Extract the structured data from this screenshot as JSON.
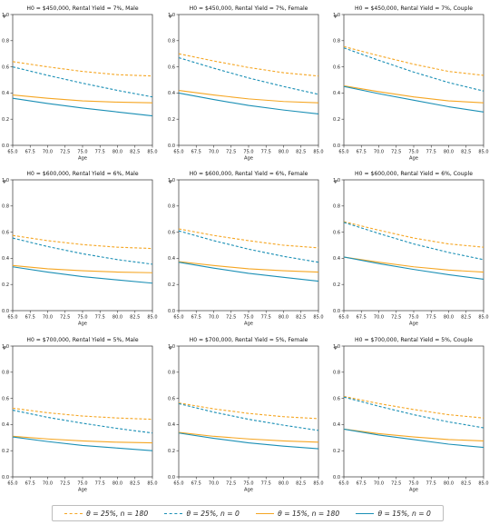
{
  "colors": {
    "orange": "#F5A623",
    "blue": "#1A8FB5",
    "axis": "#333333"
  },
  "legend": {
    "placement": "bottom",
    "items": [
      {
        "label": "θ = 25%, n = 180",
        "color": "#F5A623",
        "style": "dashed"
      },
      {
        "label": "θ = 25%, n = 0",
        "color": "#1A8FB5",
        "style": "dashed"
      },
      {
        "label": "θ = 15%, n = 180",
        "color": "#F5A623",
        "style": "solid"
      },
      {
        "label": "θ = 15%, n = 0",
        "color": "#1A8FB5",
        "style": "solid"
      }
    ]
  },
  "chart_data": [
    {
      "type": "line",
      "title": "H0 = $450,000, Rental Yield = 7%, Male",
      "xlabel": "Age",
      "ylabel": "φ",
      "xlim": [
        65,
        85
      ],
      "ylim": [
        0,
        1.0
      ],
      "grid": false,
      "x_ticks": [
        "65.0",
        "67.5",
        "70.0",
        "72.5",
        "75.0",
        "77.5",
        "80.0",
        "82.5",
        "85.0"
      ],
      "y_ticks": [
        "0.0",
        "0.2",
        "0.4",
        "0.6",
        "0.8",
        "1.0"
      ],
      "x": [
        65,
        70,
        75,
        80,
        85
      ],
      "series": [
        {
          "name": "θ = 25%, n = 180",
          "values": [
            0.64,
            0.6,
            0.565,
            0.54,
            0.53
          ]
        },
        {
          "name": "θ = 25%, n = 0",
          "values": [
            0.6,
            0.535,
            0.475,
            0.42,
            0.37
          ]
        },
        {
          "name": "θ = 15%, n = 180",
          "values": [
            0.385,
            0.36,
            0.34,
            0.33,
            0.325
          ]
        },
        {
          "name": "θ = 15%, n = 0",
          "values": [
            0.36,
            0.32,
            0.285,
            0.255,
            0.225
          ]
        }
      ]
    },
    {
      "type": "line",
      "title": "H0 = $450,000, Rental Yield = 7%, Female",
      "xlabel": "Age",
      "ylabel": "φ",
      "xlim": [
        65,
        85
      ],
      "ylim": [
        0,
        1.0
      ],
      "grid": false,
      "x_ticks": [
        "65.0",
        "67.5",
        "70.0",
        "72.5",
        "75.0",
        "77.5",
        "80.0",
        "82.5",
        "85.0"
      ],
      "y_ticks": [
        "0.0",
        "0.2",
        "0.4",
        "0.6",
        "0.8",
        "1.0"
      ],
      "x": [
        65,
        70,
        75,
        80,
        85
      ],
      "series": [
        {
          "name": "θ = 25%, n = 180",
          "values": [
            0.7,
            0.645,
            0.595,
            0.555,
            0.53
          ]
        },
        {
          "name": "θ = 25%, n = 0",
          "values": [
            0.67,
            0.59,
            0.515,
            0.45,
            0.39
          ]
        },
        {
          "name": "θ = 15%, n = 180",
          "values": [
            0.42,
            0.385,
            0.355,
            0.335,
            0.325
          ]
        },
        {
          "name": "θ = 15%, n = 0",
          "values": [
            0.4,
            0.35,
            0.305,
            0.27,
            0.24
          ]
        }
      ]
    },
    {
      "type": "line",
      "title": "H0 = $450,000, Rental Yield = 7%, Couple",
      "xlabel": "Age",
      "ylabel": "φ",
      "xlim": [
        65,
        85
      ],
      "ylim": [
        0,
        1.0
      ],
      "grid": false,
      "x_ticks": [
        "65.0",
        "67.5",
        "70.0",
        "72.5",
        "75.0",
        "77.5",
        "80.0",
        "82.5",
        "85.0"
      ],
      "y_ticks": [
        "0.0",
        "0.2",
        "0.4",
        "0.6",
        "0.8",
        "1.0"
      ],
      "x": [
        65,
        70,
        75,
        80,
        85
      ],
      "series": [
        {
          "name": "θ = 25%, n = 180",
          "values": [
            0.755,
            0.685,
            0.62,
            0.565,
            0.535
          ]
        },
        {
          "name": "θ = 25%, n = 0",
          "values": [
            0.745,
            0.65,
            0.56,
            0.48,
            0.415
          ]
        },
        {
          "name": "θ = 15%, n = 180",
          "values": [
            0.455,
            0.41,
            0.37,
            0.34,
            0.325
          ]
        },
        {
          "name": "θ = 15%, n = 0",
          "values": [
            0.45,
            0.395,
            0.345,
            0.295,
            0.255
          ]
        }
      ]
    },
    {
      "type": "line",
      "title": "H0 = $600,000, Rental Yield = 6%, Male",
      "xlabel": "Age",
      "ylabel": "φ",
      "xlim": [
        65,
        85
      ],
      "ylim": [
        0,
        1.0
      ],
      "grid": false,
      "x_ticks": [
        "65.0",
        "67.5",
        "70.0",
        "72.5",
        "75.0",
        "77.5",
        "80.0",
        "82.5",
        "85.0"
      ],
      "y_ticks": [
        "0.0",
        "0.2",
        "0.4",
        "0.6",
        "0.8",
        "1.0"
      ],
      "x": [
        65,
        70,
        75,
        80,
        85
      ],
      "series": [
        {
          "name": "θ = 25%, n = 180",
          "values": [
            0.575,
            0.535,
            0.505,
            0.485,
            0.475
          ]
        },
        {
          "name": "θ = 25%, n = 0",
          "values": [
            0.555,
            0.49,
            0.435,
            0.39,
            0.355
          ]
        },
        {
          "name": "θ = 15%, n = 180",
          "values": [
            0.345,
            0.32,
            0.305,
            0.295,
            0.29
          ]
        },
        {
          "name": "θ = 15%, n = 0",
          "values": [
            0.335,
            0.295,
            0.26,
            0.235,
            0.21
          ]
        }
      ]
    },
    {
      "type": "line",
      "title": "H0 = $600,000, Rental Yield = 6%, Female",
      "xlabel": "Age",
      "ylabel": "φ",
      "xlim": [
        65,
        85
      ],
      "ylim": [
        0,
        1.0
      ],
      "grid": false,
      "x_ticks": [
        "65.0",
        "67.5",
        "70.0",
        "72.5",
        "75.0",
        "77.5",
        "80.0",
        "82.5",
        "85.0"
      ],
      "y_ticks": [
        "0.0",
        "0.2",
        "0.4",
        "0.6",
        "0.8",
        "1.0"
      ],
      "x": [
        65,
        70,
        75,
        80,
        85
      ],
      "series": [
        {
          "name": "θ = 25%, n = 180",
          "values": [
            0.625,
            0.575,
            0.535,
            0.5,
            0.48
          ]
        },
        {
          "name": "θ = 25%, n = 0",
          "values": [
            0.61,
            0.535,
            0.47,
            0.415,
            0.37
          ]
        },
        {
          "name": "θ = 15%, n = 180",
          "values": [
            0.375,
            0.345,
            0.32,
            0.305,
            0.295
          ]
        },
        {
          "name": "θ = 15%, n = 0",
          "values": [
            0.37,
            0.325,
            0.285,
            0.255,
            0.225
          ]
        }
      ]
    },
    {
      "type": "line",
      "title": "H0 = $600,000, Rental Yield = 6%, Couple",
      "xlabel": "Age",
      "ylabel": "φ",
      "xlim": [
        65,
        85
      ],
      "ylim": [
        0,
        1.0
      ],
      "grid": false,
      "x_ticks": [
        "65.0",
        "67.5",
        "70.0",
        "72.5",
        "75.0",
        "77.5",
        "80.0",
        "82.5",
        "85.0"
      ],
      "y_ticks": [
        "0.0",
        "0.2",
        "0.4",
        "0.6",
        "0.8",
        "1.0"
      ],
      "x": [
        65,
        70,
        75,
        80,
        85
      ],
      "series": [
        {
          "name": "θ = 25%, n = 180",
          "values": [
            0.68,
            0.615,
            0.555,
            0.51,
            0.485
          ]
        },
        {
          "name": "θ = 25%, n = 0",
          "values": [
            0.675,
            0.59,
            0.51,
            0.445,
            0.39
          ]
        },
        {
          "name": "θ = 15%, n = 180",
          "values": [
            0.41,
            0.37,
            0.335,
            0.31,
            0.295
          ]
        },
        {
          "name": "θ = 15%, n = 0",
          "values": [
            0.41,
            0.36,
            0.315,
            0.275,
            0.24
          ]
        }
      ]
    },
    {
      "type": "line",
      "title": "H0 = $700,000, Rental Yield = 5%, Male",
      "xlabel": "Age",
      "ylabel": "φ",
      "xlim": [
        65,
        85
      ],
      "ylim": [
        0,
        1.0
      ],
      "grid": false,
      "x_ticks": [
        "65.0",
        "67.5",
        "70.0",
        "72.5",
        "75.0",
        "77.5",
        "80.0",
        "82.5",
        "85.0"
      ],
      "y_ticks": [
        "0.0",
        "0.2",
        "0.4",
        "0.6",
        "0.8",
        "1.0"
      ],
      "x": [
        65,
        70,
        75,
        80,
        85
      ],
      "series": [
        {
          "name": "θ = 25%, n = 180",
          "values": [
            0.525,
            0.49,
            0.465,
            0.45,
            0.44
          ]
        },
        {
          "name": "θ = 25%, n = 0",
          "values": [
            0.51,
            0.455,
            0.41,
            0.37,
            0.335
          ]
        },
        {
          "name": "θ = 15%, n = 180",
          "values": [
            0.31,
            0.29,
            0.275,
            0.265,
            0.26
          ]
        },
        {
          "name": "θ = 15%, n = 0",
          "values": [
            0.305,
            0.27,
            0.24,
            0.22,
            0.2
          ]
        }
      ]
    },
    {
      "type": "line",
      "title": "H0 = $700,000, Rental Yield = 5%, Female",
      "xlabel": "Age",
      "ylabel": "φ",
      "xlim": [
        65,
        85
      ],
      "ylim": [
        0,
        1.0
      ],
      "grid": false,
      "x_ticks": [
        "65.0",
        "67.5",
        "70.0",
        "72.5",
        "75.0",
        "77.5",
        "80.0",
        "82.5",
        "85.0"
      ],
      "y_ticks": [
        "0.0",
        "0.2",
        "0.4",
        "0.6",
        "0.8",
        "1.0"
      ],
      "x": [
        65,
        70,
        75,
        80,
        85
      ],
      "series": [
        {
          "name": "θ = 25%, n = 180",
          "values": [
            0.565,
            0.52,
            0.485,
            0.46,
            0.445
          ]
        },
        {
          "name": "θ = 25%, n = 0",
          "values": [
            0.56,
            0.495,
            0.44,
            0.395,
            0.355
          ]
        },
        {
          "name": "θ = 15%, n = 180",
          "values": [
            0.34,
            0.31,
            0.29,
            0.275,
            0.265
          ]
        },
        {
          "name": "θ = 15%, n = 0",
          "values": [
            0.335,
            0.295,
            0.26,
            0.235,
            0.215
          ]
        }
      ]
    },
    {
      "type": "line",
      "title": "H0 = $700,000, Rental Yield = 5%, Couple",
      "xlabel": "Age",
      "ylabel": "φ",
      "xlim": [
        65,
        85
      ],
      "ylim": [
        0,
        1.0
      ],
      "grid": false,
      "x_ticks": [
        "65.0",
        "67.5",
        "70.0",
        "72.5",
        "75.0",
        "77.5",
        "80.0",
        "82.5",
        "85.0"
      ],
      "y_ticks": [
        "0.0",
        "0.2",
        "0.4",
        "0.6",
        "0.8",
        "1.0"
      ],
      "x": [
        65,
        70,
        75,
        80,
        85
      ],
      "series": [
        {
          "name": "θ = 25%, n = 180",
          "values": [
            0.615,
            0.56,
            0.515,
            0.475,
            0.45
          ]
        },
        {
          "name": "θ = 25%, n = 0",
          "values": [
            0.61,
            0.54,
            0.475,
            0.42,
            0.375
          ]
        },
        {
          "name": "θ = 15%, n = 180",
          "values": [
            0.365,
            0.33,
            0.305,
            0.285,
            0.275
          ]
        },
        {
          "name": "θ = 15%, n = 0",
          "values": [
            0.365,
            0.32,
            0.285,
            0.25,
            0.225
          ]
        }
      ]
    }
  ]
}
